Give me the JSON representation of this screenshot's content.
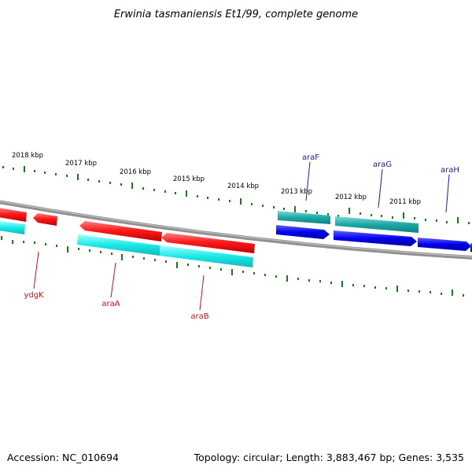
{
  "title": "Erwinia tasmaniensis Et1/99, complete genome",
  "footer": {
    "accession": "Accession: NC_010694",
    "summary": "Topology: circular; Length: 3,883,467 bp; Genes: 3,535"
  },
  "colors": {
    "backbone": "#808080",
    "tick": "#1a7a1a",
    "forward_gene": "#0000ee",
    "forward_cds": "#1aa8a8",
    "reverse_gene": "#ff1a1a",
    "reverse_cds": "#1ae0e0",
    "forward_label": "#1a1aaa",
    "reverse_label": "#cc1111"
  },
  "position_labels": [
    "2018 kbp",
    "2017 kbp",
    "2016 kbp",
    "2015 kbp",
    "2014 kbp",
    "2013 kbp",
    "2012 kbp",
    "2011 kbp"
  ],
  "gene_labels": {
    "forward": [
      "araF",
      "araG",
      "araH"
    ],
    "reverse": [
      "ydgK",
      "araA",
      "araB"
    ]
  }
}
